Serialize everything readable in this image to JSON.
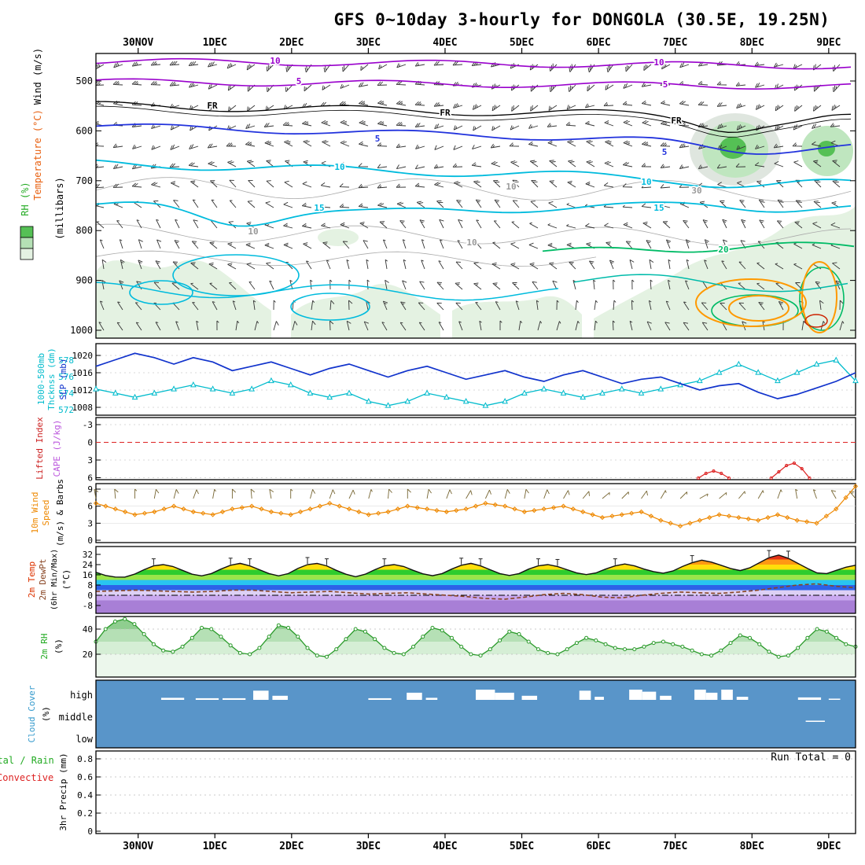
{
  "title": "GFS 0~10day 3-hourly for DONGOLA (30.5E, 19.25N)",
  "chart_data": {
    "type": "meteogram",
    "station": "DONGOLA (30.5E, 19.25N)",
    "model": "GFS",
    "time_axis": {
      "dates": [
        "30NOV",
        "1DEC",
        "2DEC",
        "3DEC",
        "4DEC",
        "5DEC",
        "6DEC",
        "7DEC",
        "8DEC",
        "9DEC"
      ],
      "span_days": 9.9,
      "first_tick_offset_days": 0.55,
      "resolution": "3-hourly"
    },
    "panels": [
      {
        "id": "upper_air",
        "type": "contour",
        "ylabel": "(millibars)",
        "side_labels": [
          {
            "text": "Wind (m/s)",
            "color": "#000000"
          },
          {
            "text": "Temperature (°C)",
            "color": "#e86010"
          },
          {
            "text": "RH (%)",
            "color": "#22aa22"
          }
        ],
        "pressure_ticks": [
          500,
          600,
          700,
          800,
          900,
          1000
        ],
        "contour_labels": [
          {
            "text": "10",
            "x": 350,
            "y": 81,
            "color": "#9900cc"
          },
          {
            "text": "10",
            "x": 838,
            "y": 83,
            "color": "#9900cc"
          },
          {
            "text": "5",
            "x": 380,
            "y": 107,
            "color": "#9900cc"
          },
          {
            "text": "5",
            "x": 846,
            "y": 111,
            "color": "#9900cc"
          },
          {
            "text": "FR",
            "x": 270,
            "y": 138,
            "color": "#000000"
          },
          {
            "text": "FR",
            "x": 566,
            "y": 147,
            "color": "#000000"
          },
          {
            "text": "FR",
            "x": 860,
            "y": 157,
            "color": "#000000"
          },
          {
            "text": "5",
            "x": 480,
            "y": 180,
            "color": "#2233dd"
          },
          {
            "text": "5",
            "x": 845,
            "y": 197,
            "color": "#2233dd"
          },
          {
            "text": "10",
            "x": 432,
            "y": 216,
            "color": "#00bbdd"
          },
          {
            "text": "10",
            "x": 822,
            "y": 235,
            "color": "#00bbdd"
          },
          {
            "text": "15",
            "x": 406,
            "y": 268,
            "color": "#00bbdd"
          },
          {
            "text": "15",
            "x": 838,
            "y": 268,
            "color": "#00bbdd"
          },
          {
            "text": "20",
            "x": 920,
            "y": 321,
            "color": "#00bb66"
          },
          {
            "text": "10",
            "x": 650,
            "y": 241,
            "color": "#999999"
          },
          {
            "text": "10",
            "x": 322,
            "y": 298,
            "color": "#999999"
          },
          {
            "text": "10",
            "x": 600,
            "y": 312,
            "color": "#999999"
          },
          {
            "text": "30",
            "x": 886,
            "y": 246,
            "color": "#999999"
          }
        ],
        "wind_barbs_note": "upper-level SW-W winds 15-25 kt veering to N-NE 5-10 kt near surface",
        "rh_shading_note": "light-green RH shading in low levels; darker RH maxima near 600mb on 8DEC and 9DEC"
      },
      {
        "id": "slp_thickness",
        "type": "line",
        "series": [
          {
            "name": "SLP (mb)",
            "color": "#1133cc",
            "ticks": [
              1020,
              1016,
              1012,
              1008
            ],
            "values": [
              1017.5,
              1019,
              1020.5,
              1019.5,
              1018,
              1019.5,
              1018.5,
              1016.5,
              1017.5,
              1018.5,
              1017,
              1015.5,
              1017,
              1018,
              1016.5,
              1015,
              1016.5,
              1017.5,
              1016,
              1014.5,
              1015.5,
              1016.5,
              1015,
              1014,
              1015.5,
              1016.5,
              1015,
              1013.5,
              1014.5,
              1015,
              1013.5,
              1012,
              1013,
              1013.5,
              1011.5,
              1010,
              1011,
              1012.5,
              1014,
              1016
            ]
          },
          {
            "name": "1000-500mb Thcknss (dm)",
            "color": "#00bbcc",
            "ticks": [
              578,
              576,
              574,
              572
            ],
            "values": [
              574.5,
              574,
              573.5,
              574,
              574.5,
              575,
              574.5,
              574,
              574.5,
              575.5,
              575,
              574,
              573.5,
              574,
              573,
              572.5,
              573,
              574,
              573.5,
              573,
              572.5,
              573,
              574,
              574.5,
              574,
              573.5,
              574,
              574.5,
              574,
              574.5,
              575,
              575.5,
              576.5,
              577.5,
              576.5,
              575.5,
              576.5,
              577.5,
              578,
              575.5
            ]
          }
        ],
        "side_labels": [
          {
            "text": "1000-500mb",
            "color": "#00bbcc"
          },
          {
            "text": "Thcknss (dm)",
            "color": "#00bbcc"
          },
          {
            "text": "SLP (mb)",
            "color": "#1133cc"
          }
        ]
      },
      {
        "id": "lifted_index_cape",
        "type": "line",
        "ticks": [
          -3,
          0,
          3,
          6
        ],
        "zero_reference_line": 0,
        "side_labels": [
          {
            "text": "Lifted Index",
            "color": "#cc2222"
          },
          {
            "text": "CAPE (J/kg)",
            "color": "#bb55dd"
          }
        ],
        "cape_bumps": [
          {
            "t": [
              7.85,
              7.95,
              8.05,
              8.15,
              8.25
            ],
            "jkg": [
              0,
              60,
              90,
              60,
              0
            ]
          },
          {
            "t": [
              8.8,
              8.9,
              9.0,
              9.1,
              9.2,
              9.3
            ],
            "jkg": [
              0,
              80,
              160,
              190,
              120,
              0
            ]
          }
        ]
      },
      {
        "id": "wind10m",
        "type": "line",
        "ticks": [
          9,
          6,
          3,
          0
        ],
        "side_labels": [
          {
            "text": "10m Wind",
            "color": "#ee8800"
          },
          {
            "text": "Speed",
            "color": "#ee8800"
          },
          {
            "text": "(m/s) & Barbs",
            "color": "#000000"
          }
        ],
        "speed_ms": [
          6.5,
          5.5,
          4.5,
          5,
          6,
          5,
          4.5,
          5.5,
          6,
          5,
          4.5,
          5.5,
          6.5,
          5.5,
          4.5,
          5,
          6,
          5.5,
          5,
          5.5,
          6.5,
          6,
          5,
          5.5,
          6,
          5,
          4,
          4.5,
          5,
          3.5,
          2.5,
          3.5,
          4.5,
          4,
          3.5,
          4.5,
          3.5,
          3,
          5.5,
          9.5
        ],
        "barb_dirs_deg": [
          350,
          355,
          0,
          10,
          15,
          20,
          10,
          0,
          355,
          350,
          0,
          15,
          20,
          25,
          15,
          5,
          0,
          10,
          20,
          30,
          25,
          15,
          10,
          20,
          30,
          40,
          50,
          45,
          35,
          30,
          45,
          60,
          50,
          40,
          30,
          20,
          350,
          340,
          330,
          320
        ],
        "series_color": "#ee8800"
      },
      {
        "id": "temp2m",
        "type": "line",
        "ticks": [
          32,
          24,
          16,
          8,
          0,
          -8
        ],
        "side_labels": [
          {
            "text": "2m Temp",
            "color": "#dd3300"
          },
          {
            "text": "2m DewPt",
            "color": "#884422"
          },
          {
            "text": "(6hr Min/Max)",
            "color": "#000000"
          },
          {
            "text": "(°C)",
            "color": "#000000"
          }
        ],
        "temp_c": [
          18,
          15.5,
          14.3,
          14.2,
          16.5,
          20,
          23,
          24,
          22.5,
          19.5,
          16.5,
          15.2,
          17,
          20.5,
          23.5,
          25,
          23,
          20,
          17,
          15.2,
          17,
          21,
          24,
          25,
          23,
          19.5,
          16.5,
          14.5,
          16.5,
          20,
          23,
          24,
          22.5,
          19.5,
          16.8,
          15.3,
          17,
          20.5,
          23.5,
          25,
          23,
          20,
          17,
          15.5,
          17,
          20.5,
          23,
          24,
          22.5,
          20,
          17.5,
          16.2,
          17.5,
          20.5,
          23,
          24.5,
          23,
          20.5,
          18.5,
          17.3,
          19,
          22.5,
          25.5,
          27.5,
          26,
          23.5,
          21,
          19.3,
          21.5,
          25.5,
          29.5,
          31.5,
          29,
          25,
          21,
          17.5,
          17,
          19.5,
          22,
          23.5
        ],
        "dewpoint_c": [
          3,
          3.5,
          4,
          3.5,
          3,
          2.5,
          3,
          4,
          4,
          3,
          2,
          2.5,
          3,
          2,
          1,
          1.5,
          2,
          1,
          0,
          -1,
          -2.5,
          -3,
          -1.5,
          0.5,
          1.5,
          0.5,
          -1.5,
          -2,
          0,
          1.5,
          2.5,
          2,
          1.5,
          2.5,
          4,
          6,
          8,
          9,
          7,
          6
        ],
        "bands": [
          {
            "from": 28,
            "to": 36,
            "color": "#e23318"
          },
          {
            "from": 24,
            "to": 28,
            "color": "#ff9913"
          },
          {
            "from": 20,
            "to": 24,
            "color": "#ffdf0a"
          },
          {
            "from": 16,
            "to": 20,
            "color": "#2ecc2e"
          },
          {
            "from": 12,
            "to": 16,
            "color": "#9ae54a"
          },
          {
            "from": 8,
            "to": 12,
            "color": "#29c5f0"
          },
          {
            "from": 4,
            "to": 8,
            "color": "#2d62e8"
          },
          {
            "from": 0,
            "to": 4,
            "color": "#ddd0f5"
          },
          {
            "from": -4,
            "to": 0,
            "color": "#c9a8ef"
          },
          {
            "from": -14,
            "to": -4,
            "color": "#a87fd6"
          }
        ]
      },
      {
        "id": "rh2m",
        "type": "area",
        "ticks": [
          40,
          20
        ],
        "side_labels": [
          {
            "text": "2m RH",
            "color": "#22aa22"
          },
          {
            "text": "(%)",
            "color": "#000000"
          }
        ],
        "rh_pct": [
          30,
          40,
          46,
          48,
          44,
          36,
          28,
          23,
          22,
          26,
          33,
          41,
          40,
          34,
          27,
          21,
          20,
          25,
          34,
          43,
          41,
          34,
          25,
          19,
          18,
          24,
          32,
          40,
          38,
          32,
          25,
          21,
          20,
          26,
          34,
          41,
          39,
          33,
          26,
          20,
          19,
          24,
          31,
          38,
          36,
          30,
          24,
          21,
          20,
          24,
          29,
          33,
          31,
          28,
          25,
          24,
          24,
          26,
          29,
          30,
          28,
          26,
          23,
          20,
          19,
          23,
          29,
          35,
          33,
          28,
          22,
          18,
          19,
          25,
          33,
          40,
          38,
          33,
          28,
          26
        ],
        "bands": [
          {
            "from": 40,
            "to": 60,
            "color": "#8fce8f"
          },
          {
            "from": 30,
            "to": 40,
            "color": "#b5e0b5"
          },
          {
            "from": 20,
            "to": 30,
            "color": "#d5eed5"
          },
          {
            "from": 0,
            "to": 20,
            "color": "#ecf7ec"
          }
        ],
        "series_color": "#2a9a2a"
      },
      {
        "id": "cloud_cover",
        "type": "bar",
        "bg_color": "#5995c9",
        "bar_color": "#ffffff",
        "rows": [
          "high",
          "middle",
          "low"
        ],
        "side_labels": [
          {
            "text": "Cloud Cover",
            "color": "#3399cc"
          },
          {
            "text": "(%)",
            "color": "#000000"
          }
        ],
        "bars": [
          {
            "row": "high",
            "t0": 0.85,
            "t1": 1.15,
            "pct": 10
          },
          {
            "row": "high",
            "t0": 1.3,
            "t1": 1.6,
            "pct": 8
          },
          {
            "row": "high",
            "t0": 1.65,
            "t1": 1.95,
            "pct": 8
          },
          {
            "row": "high",
            "t0": 2.05,
            "t1": 2.25,
            "pct": 45
          },
          {
            "row": "high",
            "t0": 2.3,
            "t1": 2.5,
            "pct": 20
          },
          {
            "row": "high",
            "t0": 3.55,
            "t1": 3.85,
            "pct": 8
          },
          {
            "row": "high",
            "t0": 4.05,
            "t1": 4.25,
            "pct": 35
          },
          {
            "row": "high",
            "t0": 4.3,
            "t1": 4.45,
            "pct": 10
          },
          {
            "row": "high",
            "t0": 4.95,
            "t1": 5.2,
            "pct": 50
          },
          {
            "row": "high",
            "t0": 5.2,
            "t1": 5.45,
            "pct": 35
          },
          {
            "row": "high",
            "t0": 5.55,
            "t1": 5.75,
            "pct": 20
          },
          {
            "row": "high",
            "t0": 6.3,
            "t1": 6.45,
            "pct": 45
          },
          {
            "row": "high",
            "t0": 6.5,
            "t1": 6.62,
            "pct": 15
          },
          {
            "row": "high",
            "t0": 6.95,
            "t1": 7.12,
            "pct": 50
          },
          {
            "row": "high",
            "t0": 7.12,
            "t1": 7.3,
            "pct": 40
          },
          {
            "row": "high",
            "t0": 7.35,
            "t1": 7.5,
            "pct": 20
          },
          {
            "row": "high",
            "t0": 7.8,
            "t1": 7.95,
            "pct": 50
          },
          {
            "row": "high",
            "t0": 7.95,
            "t1": 8.1,
            "pct": 35
          },
          {
            "row": "high",
            "t0": 8.15,
            "t1": 8.3,
            "pct": 50
          },
          {
            "row": "high",
            "t0": 8.35,
            "t1": 8.5,
            "pct": 15
          },
          {
            "row": "high",
            "t0": 9.15,
            "t1": 9.45,
            "pct": 12
          },
          {
            "row": "high",
            "t0": 9.55,
            "t1": 9.7,
            "pct": 6
          },
          {
            "row": "middle",
            "t0": 9.25,
            "t1": 9.5,
            "pct": 6
          }
        ]
      },
      {
        "id": "precip3hr",
        "type": "line",
        "ylabel": "3hr Precip (mm)",
        "ticks": [
          0.8,
          0.6,
          0.4,
          0.2,
          0
        ],
        "left_labels": [
          {
            "text": "Total / Rain",
            "color": "#22aa22"
          },
          {
            "text": "Convective",
            "color": "#dd2222"
          }
        ],
        "run_total_label": "Run Total = 0",
        "all_zero": true
      }
    ]
  }
}
